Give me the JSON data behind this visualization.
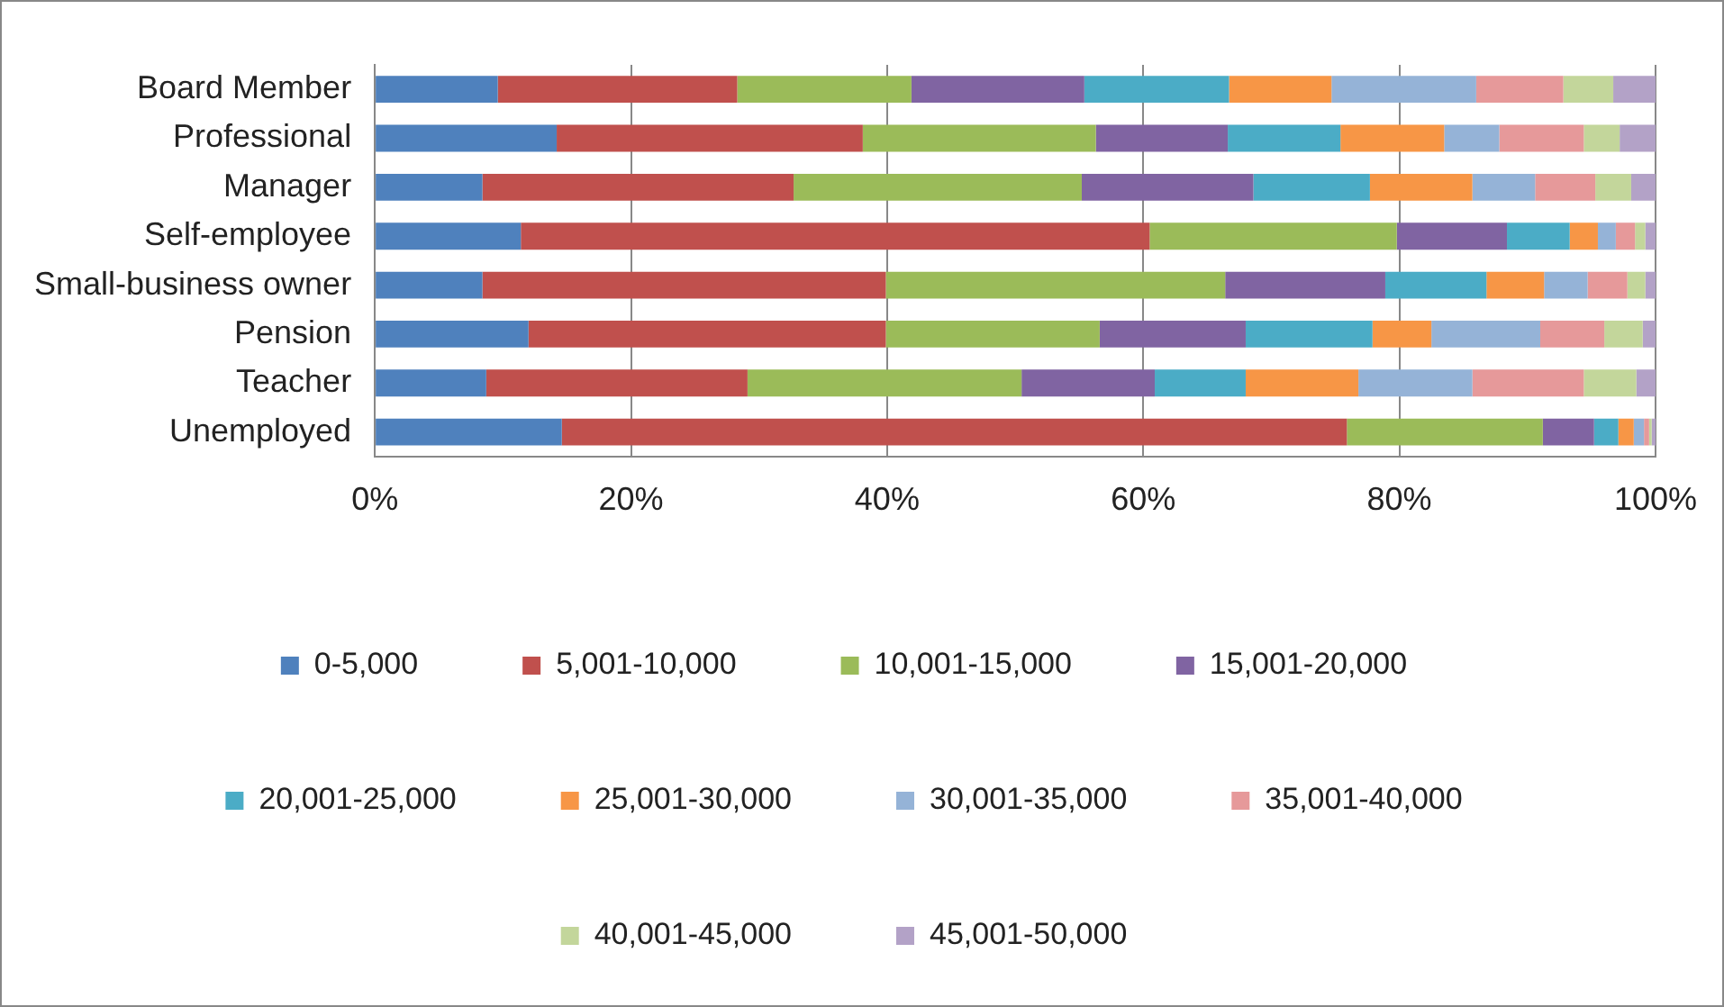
{
  "chart_data": {
    "type": "bar",
    "orientation": "horizontal",
    "stacked": true,
    "grid": "x",
    "legend": "bottom",
    "categories": [
      "Board Member",
      "Professional",
      "Manager",
      "Self-employee",
      "Small-business owner",
      "Pension",
      "Teacher",
      "Unemployed"
    ],
    "xlim": [
      0,
      100
    ],
    "xticks": [
      {
        "value": 0,
        "label": "0%"
      },
      {
        "value": 20,
        "label": "20%"
      },
      {
        "value": 40,
        "label": "40%"
      },
      {
        "value": 60,
        "label": "60%"
      },
      {
        "value": 80,
        "label": "80%"
      },
      {
        "value": 100,
        "label": "100%"
      }
    ],
    "series": [
      {
        "name": "0-5,000",
        "color": "#4f81bd",
        "values": [
          9.6,
          14.2,
          8.4,
          11.4,
          8.4,
          12.0,
          8.7,
          14.6
        ]
      },
      {
        "name": "5,001-10,000",
        "color": "#c0504d",
        "values": [
          18.7,
          23.9,
          24.3,
          49.1,
          31.5,
          27.9,
          20.4,
          61.3
        ]
      },
      {
        "name": "10,001-15,000",
        "color": "#9bbb59",
        "values": [
          13.6,
          18.2,
          22.5,
          19.3,
          26.5,
          16.7,
          21.4,
          15.3
        ]
      },
      {
        "name": "15,001-20,000",
        "color": "#8064a2",
        "values": [
          13.5,
          10.3,
          13.4,
          8.6,
          12.5,
          11.4,
          10.4,
          4.0
        ]
      },
      {
        "name": "20,001-25,000",
        "color": "#4bacc6",
        "values": [
          11.3,
          8.8,
          9.1,
          4.9,
          7.9,
          9.9,
          7.1,
          1.9
        ]
      },
      {
        "name": "25,001-30,000",
        "color": "#f79646",
        "values": [
          8.0,
          8.1,
          8.0,
          2.2,
          4.5,
          4.6,
          8.8,
          1.2
        ]
      },
      {
        "name": "30,001-35,000",
        "color": "#95b3d7",
        "values": [
          11.3,
          4.3,
          4.9,
          1.4,
          3.4,
          8.5,
          8.9,
          0.8
        ]
      },
      {
        "name": "35,001-40,000",
        "color": "#e6999a",
        "values": [
          6.8,
          6.6,
          4.7,
          1.5,
          3.1,
          5.0,
          8.7,
          0.4
        ]
      },
      {
        "name": "40,001-45,000",
        "color": "#c3d69b",
        "values": [
          3.9,
          2.8,
          2.8,
          0.8,
          1.4,
          3.0,
          4.1,
          0.2
        ]
      },
      {
        "name": "45,001-50,000",
        "color": "#b3a2c7",
        "values": [
          3.3,
          2.8,
          1.9,
          0.8,
          0.8,
          1.0,
          1.5,
          0.3
        ]
      }
    ]
  }
}
